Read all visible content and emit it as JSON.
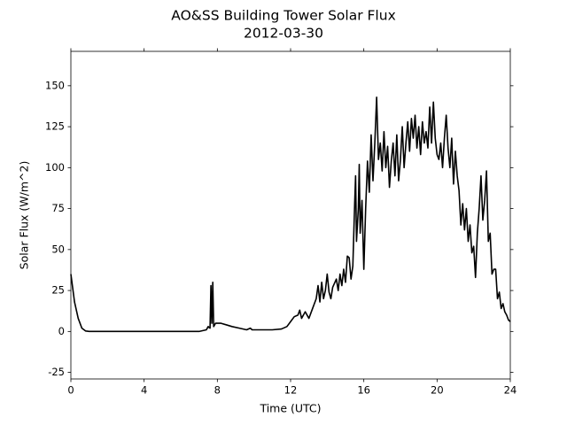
{
  "chart_data": {
    "type": "line",
    "title": "AO&SS Building Tower Solar Flux",
    "subtitle": "2012-03-30",
    "x_label": "Time (UTC)",
    "y_label": "Solar Flux (W/m^2)",
    "xlim": [
      0,
      24
    ],
    "ylim": [
      -29,
      171
    ],
    "xticks": [
      0,
      4,
      8,
      12,
      16,
      20,
      24
    ],
    "yticks": [
      -25,
      0,
      25,
      50,
      75,
      100,
      125,
      150
    ],
    "x": [
      0,
      0.2,
      0.4,
      0.6,
      0.8,
      1,
      2,
      4,
      6,
      7,
      7.4,
      7.5,
      7.6,
      7.65,
      7.7,
      7.75,
      7.8,
      7.9,
      8.2,
      8.5,
      8.8,
      9.2,
      9.6,
      9.8,
      9.9,
      10.5,
      11,
      11.5,
      11.8,
      12,
      12.2,
      12.4,
      12.5,
      12.6,
      12.8,
      13,
      13.2,
      13.4,
      13.5,
      13.6,
      13.7,
      13.8,
      13.9,
      14,
      14.1,
      14.2,
      14.3,
      14.5,
      14.6,
      14.7,
      14.8,
      14.9,
      15,
      15.1,
      15.2,
      15.3,
      15.4,
      15.5,
      15.55,
      15.6,
      15.7,
      15.75,
      15.8,
      15.9,
      16,
      16.1,
      16.2,
      16.3,
      16.4,
      16.5,
      16.6,
      16.7,
      16.8,
      16.9,
      17,
      17.1,
      17.2,
      17.3,
      17.4,
      17.5,
      17.6,
      17.7,
      17.8,
      17.9,
      18,
      18.1,
      18.2,
      18.3,
      18.4,
      18.5,
      18.6,
      18.7,
      18.8,
      18.9,
      19,
      19.1,
      19.2,
      19.3,
      19.4,
      19.5,
      19.6,
      19.7,
      19.8,
      19.9,
      20,
      20.1,
      20.2,
      20.3,
      20.4,
      20.5,
      20.6,
      20.7,
      20.8,
      20.9,
      21,
      21.1,
      21.2,
      21.3,
      21.4,
      21.5,
      21.6,
      21.7,
      21.8,
      21.9,
      22,
      22.1,
      22.2,
      22.3,
      22.4,
      22.5,
      22.6,
      22.7,
      22.8,
      22.9,
      23,
      23.1,
      23.2,
      23.3,
      23.4,
      23.5,
      23.6,
      23.7,
      23.8,
      23.9,
      24
    ],
    "series": [
      {
        "color": "#000000",
        "values": [
          35,
          18,
          8,
          2,
          0.3,
          0,
          0,
          0,
          0,
          0,
          1,
          3,
          2,
          28,
          5,
          30,
          3,
          5,
          5,
          4,
          3,
          2,
          1,
          2,
          1,
          1,
          1,
          1.5,
          3,
          6,
          9,
          10,
          13,
          8,
          12,
          8,
          14,
          20,
          28,
          18,
          30,
          20,
          25,
          35,
          24,
          20,
          27,
          32,
          25,
          35,
          28,
          38,
          30,
          46,
          45,
          32,
          40,
          78,
          95,
          55,
          75,
          102,
          60,
          80,
          38,
          75,
          104,
          85,
          120,
          92,
          115,
          143,
          105,
          115,
          98,
          122,
          100,
          113,
          88,
          104,
          115,
          95,
          120,
          92,
          105,
          125,
          100,
          115,
          128,
          110,
          130,
          118,
          132,
          112,
          125,
          108,
          128,
          115,
          122,
          112,
          137,
          115,
          140,
          118,
          108,
          105,
          115,
          100,
          118,
          132,
          112,
          100,
          118,
          90,
          110,
          95,
          86,
          65,
          78,
          62,
          75,
          55,
          65,
          48,
          52,
          33,
          60,
          75,
          95,
          68,
          80,
          98,
          55,
          60,
          35,
          38,
          38,
          20,
          24,
          14,
          17,
          12,
          10,
          7,
          6
        ]
      }
    ]
  }
}
